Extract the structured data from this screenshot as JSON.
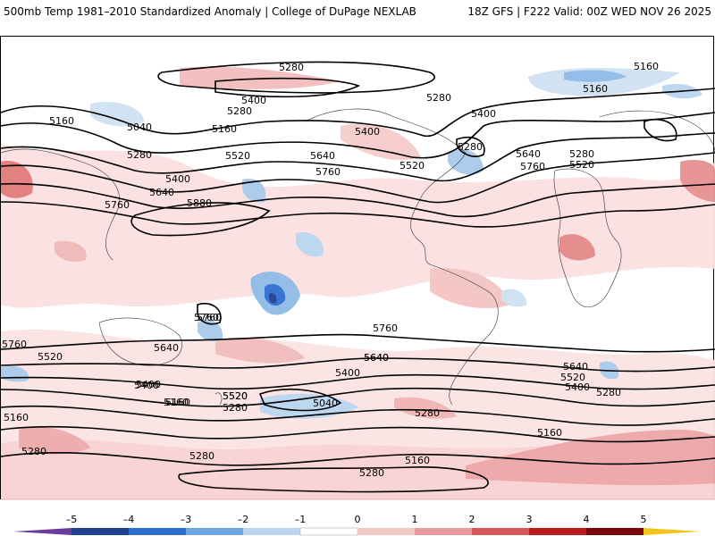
{
  "header": {
    "title": "500mb Temp 1981–2010 Standardized Anomaly | College of DuPage NEXLAB",
    "valid": "18Z GFS | F222 Valid: 00Z WED NOV 26 2025"
  },
  "colorbar": {
    "ticks": [
      "–5",
      "–4",
      "–3",
      "–2",
      "–1",
      "0",
      "1",
      "2",
      "3",
      "4",
      "5"
    ],
    "colors": [
      "#6a3d9a",
      "#1f3f8f",
      "#2f6fd0",
      "#6ea8e0",
      "#b9d5ef",
      "#ffffff",
      "#f6c9c9",
      "#e99a9a",
      "#d65a5a",
      "#b81c1c",
      "#7a0a0a",
      "#f2c51d"
    ]
  },
  "contour_labels": [
    {
      "text": "5280"
    },
    {
      "text": "5400"
    },
    {
      "text": "5280"
    },
    {
      "text": "5160"
    },
    {
      "text": "5040"
    },
    {
      "text": "5160"
    },
    {
      "text": "5280"
    },
    {
      "text": "5520"
    },
    {
      "text": "5400"
    },
    {
      "text": "5640"
    },
    {
      "text": "5760"
    },
    {
      "text": "5880"
    },
    {
      "text": "5640"
    },
    {
      "text": "5760"
    },
    {
      "text": "5520"
    },
    {
      "text": "5400"
    },
    {
      "text": "5280"
    },
    {
      "text": "5280"
    },
    {
      "text": "5400"
    },
    {
      "text": "5160"
    },
    {
      "text": "5160"
    },
    {
      "text": "5280"
    },
    {
      "text": "5640"
    },
    {
      "text": "5520"
    },
    {
      "text": "5760"
    },
    {
      "text": "5760"
    },
    {
      "text": "5640"
    },
    {
      "text": "5520"
    },
    {
      "text": "5760"
    },
    {
      "text": "5640"
    },
    {
      "text": "5400"
    },
    {
      "text": "5520"
    },
    {
      "text": "5280"
    },
    {
      "text": "5160"
    },
    {
      "text": "5040"
    },
    {
      "text": "5400"
    },
    {
      "text": "5640"
    },
    {
      "text": "5760"
    },
    {
      "text": "5640"
    },
    {
      "text": "5520"
    },
    {
      "text": "5400"
    },
    {
      "text": "5280"
    },
    {
      "text": "5280"
    },
    {
      "text": "5160"
    },
    {
      "text": "5160"
    },
    {
      "text": "5280"
    },
    {
      "text": "5160"
    },
    {
      "text": "5280"
    },
    {
      "text": "5760"
    },
    {
      "text": "5520"
    },
    {
      "text": "5400"
    },
    {
      "text": "5160"
    },
    {
      "text": "5280"
    }
  ]
}
